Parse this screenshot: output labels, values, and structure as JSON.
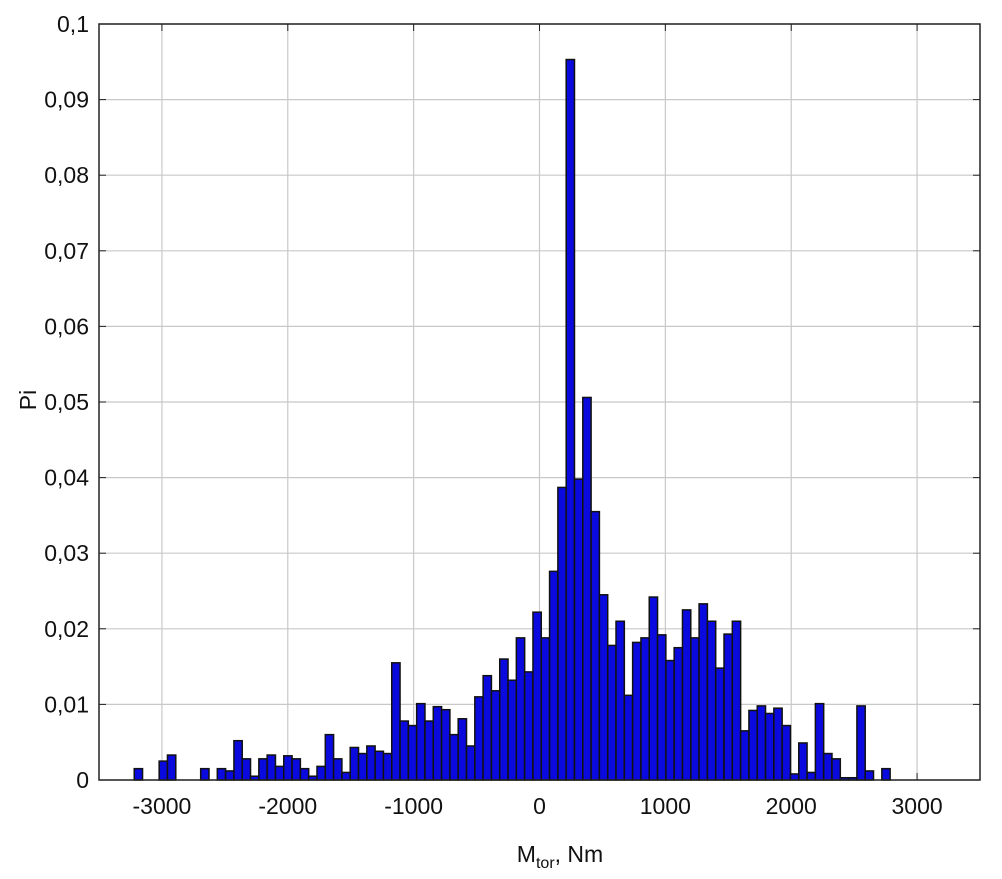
{
  "chart_data": {
    "type": "histogram",
    "x_label_parts": [
      "M",
      "tor",
      ", Nm"
    ],
    "ylabel": "Pi",
    "color": "#0a0ade",
    "grid": true,
    "xlim": [
      -3500,
      3500
    ],
    "ylim": [
      0,
      0.1
    ],
    "xticks": [
      -3000,
      -2000,
      -1000,
      0,
      1000,
      2000,
      3000
    ],
    "yticks": [
      0,
      {
        "value": 0.01,
        "label": "0,01"
      },
      {
        "value": 0.02,
        "label": "0,02"
      },
      {
        "value": 0.03,
        "label": "0,03"
      },
      {
        "value": 0.04,
        "label": "0,04"
      },
      {
        "value": 0.05,
        "label": "0,05"
      },
      {
        "value": 0.06,
        "label": "0,06"
      },
      {
        "value": 0.07,
        "label": "0,07"
      },
      {
        "value": 0.08,
        "label": "0,08"
      },
      {
        "value": 0.09,
        "label": "0,09"
      },
      {
        "value": 0.1,
        "label": "0,1"
      }
    ],
    "bins": [
      -3220,
      -3154,
      -3088,
      -3022,
      -2956,
      -2890,
      -2824,
      -2758,
      -2692,
      -2626,
      -2560,
      -2494,
      -2428,
      -2362,
      -2296,
      -2230,
      -2164,
      -2098,
      -2032,
      -1966,
      -1900,
      -1834,
      -1768,
      -1702,
      -1636,
      -1570,
      -1504,
      -1438,
      -1372,
      -1306,
      -1240,
      -1174,
      -1108,
      -1042,
      -976,
      -910,
      -844,
      -778,
      -712,
      -646,
      -580,
      -514,
      -448,
      -382,
      -316,
      -250,
      -184,
      -118,
      -52,
      14,
      80,
      146,
      212,
      278,
      344,
      410,
      476,
      542,
      608,
      674,
      740,
      806,
      872,
      938,
      1004,
      1070,
      1136,
      1202,
      1268,
      1334,
      1400,
      1466,
      1532,
      1598,
      1664,
      1730,
      1796,
      1862,
      1928,
      1994,
      2060,
      2126,
      2192,
      2258,
      2324,
      2390,
      2456,
      2522,
      2588,
      2654,
      2720,
      2786
    ],
    "values": [
      0.0015,
      0,
      0,
      0.0025,
      0.0033,
      0,
      0,
      0,
      0.0015,
      0,
      0.0015,
      0.0012,
      0.0052,
      0.0028,
      0.0005,
      0.0028,
      0.0033,
      0.0018,
      0.0032,
      0.0028,
      0.0015,
      0.0005,
      0.0018,
      0.006,
      0.0028,
      0.001,
      0.0043,
      0.0035,
      0.0045,
      0.0038,
      0.0035,
      0.0155,
      0.0078,
      0.0072,
      0.0101,
      0.0078,
      0.0097,
      0.0093,
      0.006,
      0.0081,
      0.0045,
      0.011,
      0.0138,
      0.0118,
      0.016,
      0.0132,
      0.0188,
      0.0143,
      0.0222,
      0.0188,
      0.0276,
      0.0387,
      0.0953,
      0.0398,
      0.0506,
      0.0355,
      0.0245,
      0.0178,
      0.021,
      0.0112,
      0.0182,
      0.0188,
      0.0242,
      0.0192,
      0.0158,
      0.0175,
      0.0225,
      0.0188,
      0.0233,
      0.021,
      0.0148,
      0.0193,
      0.021,
      0.0065,
      0.0092,
      0.0098,
      0.0088,
      0.0095,
      0.0072,
      0.0008,
      0.0049,
      0.001,
      0.0101,
      0.0035,
      0.0028,
      0.0003,
      0.0003,
      0.0098,
      0.0012,
      0,
      0.0015
    ]
  }
}
